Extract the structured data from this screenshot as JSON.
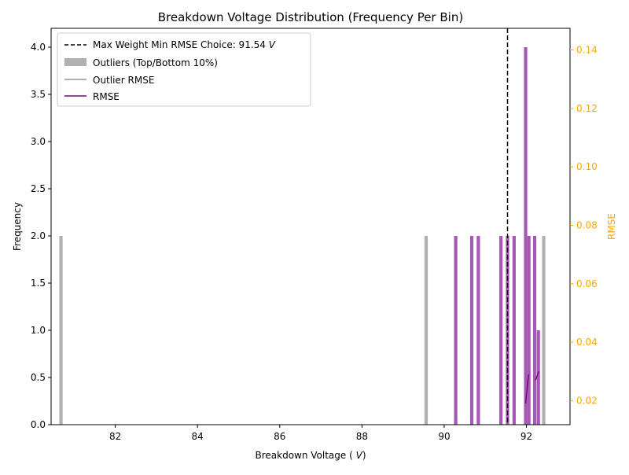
{
  "chart_data": {
    "type": "bar",
    "title": "Breakdown Voltage Distribution (Frequency Per Bin)",
    "xlabel": "Breakdown Voltage (V)",
    "ylabel": "Frequency",
    "y2label": "RMSE",
    "xlim": [
      80.44,
      93.06
    ],
    "ylim": [
      0,
      4.2
    ],
    "y2lim": [
      0.0118,
      0.1474
    ],
    "xticks": [
      82,
      84,
      86,
      88,
      90,
      92
    ],
    "yticks": [
      0.0,
      0.5,
      1.0,
      1.5,
      2.0,
      2.5,
      3.0,
      3.5,
      4.0
    ],
    "y2ticks": [
      0.02,
      0.04,
      0.06,
      0.08,
      0.1,
      0.12,
      0.14
    ],
    "xtick_labels": [
      "82",
      "84",
      "86",
      "88",
      "90",
      "92"
    ],
    "ytick_labels": [
      "0.0",
      "0.5",
      "1.0",
      "1.5",
      "2.0",
      "2.5",
      "3.0",
      "3.5",
      "4.0"
    ],
    "y2tick_labels": [
      "0.02",
      "0.04",
      "0.06",
      "0.08",
      "0.10",
      "0.12",
      "0.14"
    ],
    "bar_width": 0.08,
    "series": [
      {
        "name": "Outliers (Top/Bottom 10%)",
        "color": "#b0b0b0",
        "x": [
          80.68,
          89.56,
          92.42
        ],
        "values": [
          2,
          2,
          2
        ]
      },
      {
        "name": "Frequency",
        "color": "#a04fb0",
        "x": [
          90.28,
          90.67,
          90.83,
          91.38,
          91.54,
          91.7,
          91.98,
          92.06,
          92.2,
          92.29
        ],
        "values": [
          2,
          2,
          2,
          2,
          2,
          2,
          4,
          2,
          2,
          1
        ]
      }
    ],
    "rmse_series": [
      {
        "name": "RMSE",
        "color": "#800080",
        "x": [
          91.98,
          92.05
        ],
        "values": [
          0.019,
          0.029
        ]
      },
      {
        "name": "RMSE",
        "color": "#800080",
        "x": [
          92.22,
          92.3
        ],
        "values": [
          0.027,
          0.03
        ]
      }
    ],
    "vline": {
      "x": 91.54,
      "color": "#000000",
      "style": "dashed"
    },
    "legend": {
      "placement": "top-left",
      "entries": [
        {
          "label": "Max Weight Min RMSE Choice: 91.54 V",
          "kind": "dashed-line",
          "color": "#000000"
        },
        {
          "label": "Outliers (Top/Bottom 10%)",
          "kind": "patch",
          "color": "#b0b0b0"
        },
        {
          "label": "Outlier RMSE",
          "kind": "line",
          "color": "#999999"
        },
        {
          "label": "RMSE",
          "kind": "line",
          "color": "#800080"
        }
      ]
    },
    "colors": {
      "right_axis": "#ffa500",
      "axes": "#000000"
    },
    "grid": false
  }
}
